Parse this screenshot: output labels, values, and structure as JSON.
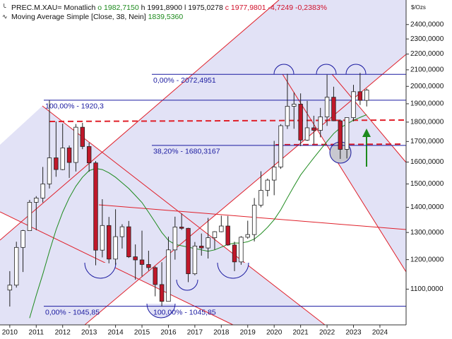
{
  "chart_data": {
    "type": "candlestick",
    "header": {
      "symbol": "PREC.M.XAU=",
      "interval": "Monatlich",
      "open": "o 1982,7150",
      "high": "h 1991,8900",
      "low": "l 1975,0278",
      "close": "c 1977,9801",
      "change": "-4,7249",
      "change_pct": "-0,2383%",
      "ma_name": "Moving Average Simple",
      "ma_params": "[Close, 38, Nein]",
      "ma_value": "1839,5360"
    },
    "unit_label": "$/Ozs",
    "log_scale": true,
    "x": [
      2010.0,
      2010.25,
      2010.5,
      2010.75,
      2011.0,
      2011.25,
      2011.5,
      2011.75,
      2012.0,
      2012.25,
      2012.5,
      2012.75,
      2013.0,
      2013.25,
      2013.5,
      2013.75,
      2014.0,
      2014.25,
      2014.5,
      2014.75,
      2015.0,
      2015.25,
      2015.5,
      2015.75,
      2016.0,
      2016.25,
      2016.5,
      2016.75,
      2017.0,
      2017.25,
      2017.5,
      2017.75,
      2018.0,
      2018.25,
      2018.5,
      2018.75,
      2019.0,
      2019.25,
      2019.5,
      2019.75,
      2020.0,
      2020.25,
      2020.5,
      2020.75,
      2021.0,
      2021.25,
      2021.5,
      2021.75,
      2022.0,
      2022.25,
      2022.5,
      2022.75,
      2023.0,
      2023.25,
      2023.5
    ],
    "open": [
      1097,
      1113,
      1244,
      1307,
      1421,
      1439,
      1500,
      1620,
      1565,
      1668,
      1598,
      1773,
      1675,
      1596,
      1234,
      1327,
      1202,
      1284,
      1322,
      1210,
      1199,
      1183,
      1172,
      1115,
      1061,
      1235,
      1321,
      1316,
      1151,
      1249,
      1242,
      1280,
      1303,
      1325,
      1253,
      1192,
      1282,
      1292,
      1409,
      1472,
      1517,
      1577,
      1781,
      1886,
      1898,
      1707,
      1770,
      1757,
      1828,
      1937,
      1807,
      1661,
      1824,
      1969,
      1919
    ],
    "high": [
      1160,
      1265,
      1310,
      1431,
      1447,
      1577,
      1920,
      1803,
      1792,
      1680,
      1790,
      1796,
      1694,
      1605,
      1434,
      1361,
      1392,
      1332,
      1345,
      1255,
      1307,
      1232,
      1177,
      1191,
      1284,
      1362,
      1375,
      1318,
      1264,
      1296,
      1357,
      1305,
      1366,
      1365,
      1265,
      1286,
      1346,
      1439,
      1557,
      1524,
      1703,
      1789,
      2075,
      1965,
      1959,
      1916,
      1834,
      1877,
      2070,
      1998,
      1814,
      1824,
      2009,
      2081,
      1987
    ],
    "low": [
      1045,
      1105,
      1157,
      1310,
      1309,
      1420,
      1480,
      1532,
      1562,
      1527,
      1556,
      1662,
      1555,
      1180,
      1208,
      1187,
      1182,
      1240,
      1206,
      1131,
      1142,
      1162,
      1077,
      1046,
      1062,
      1200,
      1310,
      1123,
      1146,
      1214,
      1204,
      1236,
      1301,
      1250,
      1160,
      1182,
      1276,
      1266,
      1400,
      1446,
      1451,
      1568,
      1764,
      1765,
      1677,
      1703,
      1687,
      1721,
      1780,
      1805,
      1615,
      1617,
      1804,
      1893,
      1885
    ],
    "close": [
      1113,
      1244,
      1307,
      1421,
      1439,
      1500,
      1620,
      1565,
      1668,
      1598,
      1773,
      1675,
      1596,
      1234,
      1327,
      1202,
      1284,
      1322,
      1210,
      1199,
      1183,
      1172,
      1115,
      1061,
      1235,
      1321,
      1316,
      1151,
      1249,
      1242,
      1280,
      1303,
      1325,
      1253,
      1192,
      1282,
      1292,
      1409,
      1472,
      1517,
      1577,
      1781,
      1886,
      1898,
      1707,
      1770,
      1757,
      1828,
      1937,
      1807,
      1661,
      1824,
      1969,
      1919,
      1978
    ],
    "moving_average": [
      null,
      null,
      null,
      1010,
      1080,
      1150,
      1230,
      1310,
      1380,
      1440,
      1490,
      1530,
      1560,
      1570,
      1565,
      1550,
      1530,
      1505,
      1480,
      1450,
      1420,
      1380,
      1340,
      1300,
      1270,
      1255,
      1250,
      1245,
      1240,
      1235,
      1230,
      1235,
      1245,
      1255,
      1260,
      1260,
      1265,
      1275,
      1295,
      1320,
      1350,
      1390,
      1440,
      1490,
      1540,
      1580,
      1620,
      1660,
      1700,
      1740,
      1770,
      1790,
      1810,
      1825,
      1840
    ],
    "up_color": "#ffffff",
    "down_color": "#c0182a",
    "ma_color": "#1d8a1d",
    "xlim": [
      2009.63,
      2024.99
    ],
    "xticks": [
      2010,
      2011,
      2012,
      2013,
      2014,
      2015,
      2016,
      2017,
      2018,
      2019,
      2020,
      2021,
      2022,
      2023,
      2024
    ],
    "ylim": [
      990,
      2580
    ],
    "yticks": [
      {
        "value": 1100,
        "label": "1100,0000"
      },
      {
        "value": 1200,
        "label": "1200,0000"
      },
      {
        "value": 1300,
        "label": "1300,0000"
      },
      {
        "value": 1400,
        "label": "1400,0000"
      },
      {
        "value": 1500,
        "label": "1500,0000"
      },
      {
        "value": 1600,
        "label": "1600,0000"
      },
      {
        "value": 1700,
        "label": "1700,0000"
      },
      {
        "value": 1800,
        "label": "1800,0000"
      },
      {
        "value": 1900,
        "label": "1900,0000"
      },
      {
        "value": 2000,
        "label": "2000,0000"
      },
      {
        "value": 2100,
        "label": "2100,0000"
      },
      {
        "value": 2200,
        "label": "2200,0000"
      },
      {
        "value": 2300,
        "label": "2300,0000"
      },
      {
        "value": 2400,
        "label": "2400,0000"
      }
    ],
    "annotations": [
      {
        "label": "0,00% - 2072,4951",
        "value": 2072.4951
      },
      {
        "label": "100,00% - 1920,3",
        "value": 1920.3
      },
      {
        "label": "38,20% - 1680,3167",
        "value": 1680.3167
      },
      {
        "label": "0,00% - 1045,85",
        "value": 1045.85
      },
      {
        "label": "100,00% - 1045,85",
        "value": 1045.85
      }
    ]
  }
}
